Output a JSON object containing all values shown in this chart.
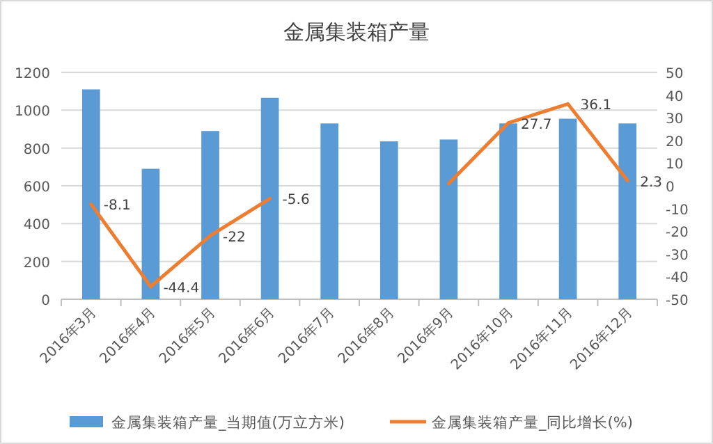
{
  "chart_data": {
    "type": "bar",
    "title": "金属集装箱产量",
    "categories": [
      "2016年3月",
      "2016年4月",
      "2016年5月",
      "2016年6月",
      "2016年7月",
      "2016年8月",
      "2016年9月",
      "2016年10月",
      "2016年11月",
      "2016年12月"
    ],
    "series": [
      {
        "name": "金属集装箱产量_当期值(万立方米)",
        "color": "#5b9bd5",
        "values": [
          1110,
          690,
          890,
          1065,
          930,
          835,
          845,
          930,
          955,
          930
        ]
      },
      {
        "name": "金属集装箱产量_同比增长(%)",
        "type": "line",
        "axis": "y2",
        "color": "#ed7d31",
        "values": [
          -8.1,
          -44.4,
          -22,
          -5.6,
          null,
          null,
          1,
          27.7,
          36.1,
          2.3
        ],
        "value_labels": [
          "-8.1",
          "-44.4",
          "-22",
          "-5.6",
          null,
          null,
          null,
          "27.7",
          "36.1",
          "2.3"
        ]
      }
    ],
    "ylim": [
      0,
      1200
    ],
    "yticks": [
      0,
      200,
      400,
      600,
      800,
      1000,
      1200
    ],
    "y2lim": [
      -50,
      50
    ],
    "y2ticks": [
      -50,
      -40,
      -30,
      -20,
      -10,
      0,
      10,
      20,
      30,
      40,
      50
    ],
    "grid": "y",
    "legend": "bottom",
    "marker": "none",
    "line_style": "solid"
  }
}
